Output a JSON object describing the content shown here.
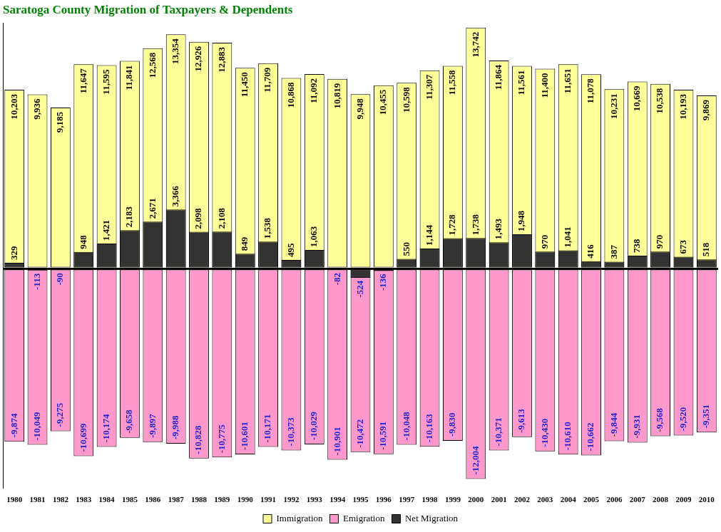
{
  "chart_data": {
    "type": "bar",
    "title": "Saratoga County Migration of Taxpayers & Dependents",
    "categories": [
      "1980",
      "1981",
      "1982",
      "1983",
      "1984",
      "1985",
      "1986",
      "1987",
      "1988",
      "1989",
      "1990",
      "1991",
      "1992",
      "1993",
      "1994",
      "1995",
      "1996",
      "1997",
      "1998",
      "1999",
      "2000",
      "2001",
      "2002",
      "2003",
      "2004",
      "2005",
      "2006",
      "2007",
      "2008",
      "2009",
      "2010"
    ],
    "series": [
      {
        "name": "Immigration",
        "color": "#ffff99",
        "values": [
          10203,
          9936,
          9185,
          11647,
          11595,
          11841,
          12568,
          13354,
          12926,
          12883,
          11450,
          11709,
          10868,
          11092,
          10819,
          9948,
          10455,
          10598,
          11307,
          11558,
          13742,
          11864,
          11561,
          11400,
          11651,
          11078,
          10231,
          10669,
          10538,
          10193,
          9869
        ],
        "value_labels": [
          "10,203",
          "9,936",
          "9,185",
          "11,647",
          "11,595",
          "11,841",
          "12,568",
          "13,354",
          "12,926",
          "12,883",
          "11,450",
          "11,709",
          "10,868",
          "11,092",
          "10,819",
          "9,948",
          "10,455",
          "10,598",
          "11,307",
          "11,558",
          "13,742",
          "11,864",
          "11,561",
          "11,400",
          "11,651",
          "11,078",
          "10,231",
          "10,669",
          "10,538",
          "10,193",
          "9,869"
        ]
      },
      {
        "name": "Emigration",
        "color": "#ff99cc",
        "values": [
          -9874,
          -10049,
          -9275,
          -10699,
          -10174,
          -9658,
          -9897,
          -9988,
          -10828,
          -10775,
          -10601,
          -10171,
          -10373,
          -10029,
          -10901,
          -10472,
          -10591,
          -10048,
          -10163,
          -9830,
          -12004,
          -10371,
          -9613,
          -10430,
          -10610,
          -10662,
          -9844,
          -9931,
          -9568,
          -9520,
          -9351
        ],
        "value_labels": [
          "-9,874",
          "-10,049",
          "-9,275",
          "-10,699",
          "-10,174",
          "-9,658",
          "-9,897",
          "-9,988",
          "-10,828",
          "-10,775",
          "-10,601",
          "-10,171",
          "-10,373",
          "-10,029",
          "-10,901",
          "-10,472",
          "-10,591",
          "-10,048",
          "-10,163",
          "-9,830",
          "-12,004",
          "-10,371",
          "-9,613",
          "-10,430",
          "-10,610",
          "-10,662",
          "-9,844",
          "-9,931",
          "-9,568",
          "-9,520",
          "-9,351"
        ]
      },
      {
        "name": "Net Migration",
        "color": "#333333",
        "values": [
          329,
          -113,
          -90,
          948,
          1421,
          2183,
          2671,
          3366,
          2098,
          2108,
          849,
          1538,
          495,
          1063,
          -82,
          -524,
          -136,
          550,
          1144,
          1728,
          1738,
          1493,
          1948,
          970,
          1041,
          416,
          387,
          738,
          970,
          673,
          518
        ],
        "value_labels": [
          "329",
          "-113",
          "-90",
          "948",
          "1,421",
          "2,183",
          "2,671",
          "3,366",
          "2,098",
          "2,108",
          "849",
          "1,538",
          "495",
          "1,063",
          "-82",
          "-524",
          "-136",
          "550",
          "1,144",
          "1,728",
          "1,738",
          "1,493",
          "1,948",
          "970",
          "1,041",
          "416",
          "387",
          "738",
          "970",
          "673",
          "518"
        ]
      }
    ],
    "ylim": [
      -12500,
      14000
    ],
    "yticks": [
      0
    ],
    "grid": true,
    "legend": "bottom",
    "data_labels": true,
    "tick_labels": "x"
  }
}
